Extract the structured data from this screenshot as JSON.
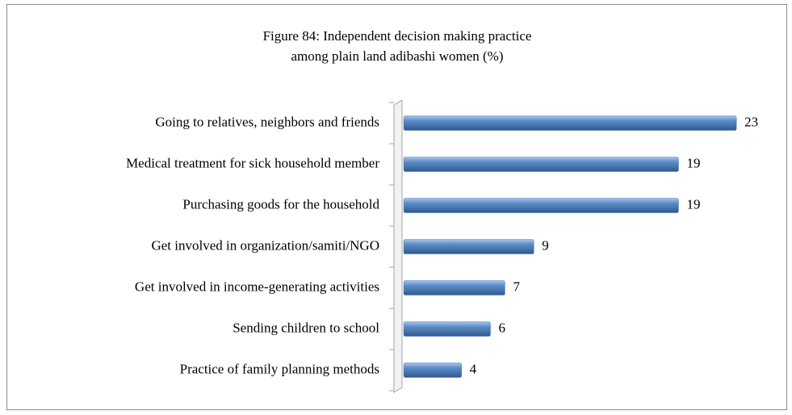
{
  "chart_data": {
    "type": "bar",
    "orientation": "horizontal",
    "title": [
      "Figure 84: Independent decision making practice",
      "among plain land adibashi women (%)"
    ],
    "categories": [
      "Going to relatives, neighbors and friends",
      "Medical treatment  for sick household member",
      "Purchasing goods for the household",
      "Get involved in organization/samiti/NGO",
      "Get involved in  income-generating activities",
      "Sending children to school",
      "Practice of family planning methods"
    ],
    "values": [
      23,
      19,
      19,
      9,
      7,
      6,
      4
    ],
    "color": "#4f81bd",
    "xlim": [
      0,
      25
    ]
  }
}
